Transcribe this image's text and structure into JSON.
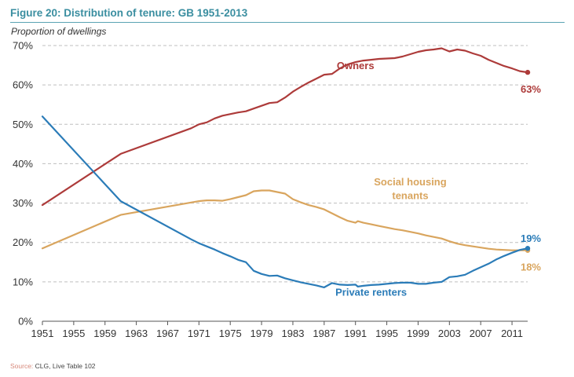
{
  "figure": {
    "title": "Figure 20:  Distribution of tenure: GB 1951-2013",
    "ylabel": "Proportion of dwellings",
    "source_prefix": "Source:",
    "source_text": " CLG, Live Table 102"
  },
  "colors": {
    "owners": "#ad3b3a",
    "social": "#d9a55e",
    "private": "#2b7cb8",
    "grid": "#bfbfbf",
    "axis": "#555555",
    "title": "#3a8ea0"
  },
  "chart_data": {
    "type": "line",
    "title": "Figure 20:  Distribution of tenure: GB 1951-2013",
    "ylabel": "Proportion of dwellings",
    "xlabel": "",
    "xlim": [
      1951,
      2013
    ],
    "ylim": [
      0,
      70
    ],
    "yticks": [
      0,
      10,
      20,
      30,
      40,
      50,
      60,
      70
    ],
    "ytick_labels": [
      "0%",
      "10%",
      "20%",
      "30%",
      "40%",
      "50%",
      "60%",
      "70%"
    ],
    "xticks": [
      1951,
      1955,
      1959,
      1963,
      1967,
      1971,
      1975,
      1979,
      1983,
      1987,
      1991,
      1995,
      1999,
      2003,
      2007,
      2011
    ],
    "xtick_labels": [
      "1951",
      "1955",
      "1959",
      "1963",
      "1967",
      "1971",
      "1975",
      "1979",
      "1983",
      "1987",
      "1991",
      "1995",
      "1999",
      "2003",
      "2007",
      "2011"
    ],
    "grid": "horizontal-dashed",
    "legend": "none",
    "series": [
      {
        "name": "Owners",
        "color": "#ad3b3a",
        "end_label": "63%",
        "points": [
          [
            1951,
            29.5
          ],
          [
            1961,
            42.5
          ],
          [
            1970,
            49
          ],
          [
            1971,
            50
          ],
          [
            1972,
            50.5
          ],
          [
            1973,
            51.5
          ],
          [
            1974,
            52.2
          ],
          [
            1976,
            53
          ],
          [
            1977,
            53.3
          ],
          [
            1978,
            54
          ],
          [
            1979,
            54.7
          ],
          [
            1980,
            55.4
          ],
          [
            1981,
            55.6
          ],
          [
            1982,
            56.8
          ],
          [
            1983,
            58.3
          ],
          [
            1984,
            59.5
          ],
          [
            1985,
            60.6
          ],
          [
            1986,
            61.6
          ],
          [
            1987,
            62.6
          ],
          [
            1988,
            62.8
          ],
          [
            1989,
            64.2
          ],
          [
            1990,
            65.2
          ],
          [
            1991,
            65.8
          ],
          [
            1992,
            66.2
          ],
          [
            1993,
            66.4
          ],
          [
            1994,
            66.6
          ],
          [
            1995,
            66.7
          ],
          [
            1996,
            66.8
          ],
          [
            1997,
            67.2
          ],
          [
            1998,
            67.8
          ],
          [
            1999,
            68.4
          ],
          [
            2000,
            68.8
          ],
          [
            2001,
            69
          ],
          [
            2002,
            69.3
          ],
          [
            2003,
            68.5
          ],
          [
            2004,
            69
          ],
          [
            2005,
            68.7
          ],
          [
            2006,
            68
          ],
          [
            2007,
            67.4
          ],
          [
            2008,
            66.4
          ],
          [
            2009,
            65.6
          ],
          [
            2010,
            64.8
          ],
          [
            2011,
            64.2
          ],
          [
            2012,
            63.5
          ],
          [
            2013,
            63.2
          ]
        ]
      },
      {
        "name": "Social housing tenants",
        "color": "#d9a55e",
        "end_label": "18%",
        "points": [
          [
            1951,
            18.5
          ],
          [
            1961,
            27
          ],
          [
            1971,
            30.5
          ],
          [
            1972,
            30.7
          ],
          [
            1973,
            30.7
          ],
          [
            1974,
            30.6
          ],
          [
            1975,
            31
          ],
          [
            1976,
            31.5
          ],
          [
            1977,
            32
          ],
          [
            1978,
            33
          ],
          [
            1979,
            33.2
          ],
          [
            1980,
            33.2
          ],
          [
            1981,
            32.8
          ],
          [
            1982,
            32.4
          ],
          [
            1983,
            31
          ],
          [
            1984,
            30.2
          ],
          [
            1985,
            29.5
          ],
          [
            1986,
            29
          ],
          [
            1987,
            28.4
          ],
          [
            1988,
            27.4
          ],
          [
            1989,
            26.4
          ],
          [
            1990,
            25.5
          ],
          [
            1991,
            25
          ],
          [
            1991.3,
            25.4
          ],
          [
            1992,
            25
          ],
          [
            1993,
            24.6
          ],
          [
            1994,
            24.2
          ],
          [
            1995,
            23.8
          ],
          [
            1996,
            23.4
          ],
          [
            1997,
            23.1
          ],
          [
            1998,
            22.7
          ],
          [
            1999,
            22.3
          ],
          [
            2000,
            21.8
          ],
          [
            2001,
            21.4
          ],
          [
            2002,
            21
          ],
          [
            2003,
            20.3
          ],
          [
            2004,
            19.7
          ],
          [
            2005,
            19.3
          ],
          [
            2006,
            19
          ],
          [
            2007,
            18.7
          ],
          [
            2008,
            18.4
          ],
          [
            2009,
            18.2
          ],
          [
            2010,
            18.1
          ],
          [
            2011,
            18
          ],
          [
            2012,
            18
          ],
          [
            2013,
            18
          ]
        ]
      },
      {
        "name": "Private renters",
        "color": "#2b7cb8",
        "end_label": "19%",
        "points": [
          [
            1951,
            52
          ],
          [
            1961,
            30.5
          ],
          [
            1970,
            20.8
          ],
          [
            1971,
            19.8
          ],
          [
            1972,
            19
          ],
          [
            1973,
            18.2
          ],
          [
            1974,
            17.3
          ],
          [
            1975,
            16.5
          ],
          [
            1976,
            15.6
          ],
          [
            1977,
            15
          ],
          [
            1978,
            12.8
          ],
          [
            1979,
            12
          ],
          [
            1980,
            11.5
          ],
          [
            1981,
            11.6
          ],
          [
            1982,
            10.9
          ],
          [
            1983,
            10.4
          ],
          [
            1984,
            9.9
          ],
          [
            1985,
            9.5
          ],
          [
            1986,
            9.1
          ],
          [
            1987,
            8.6
          ],
          [
            1988,
            9.7
          ],
          [
            1989,
            9.3
          ],
          [
            1990,
            9.2
          ],
          [
            1991,
            9.3
          ],
          [
            1991.3,
            8.8
          ],
          [
            1992,
            9
          ],
          [
            1993,
            9.2
          ],
          [
            1994,
            9.3
          ],
          [
            1995,
            9.5
          ],
          [
            1996,
            9.7
          ],
          [
            1997,
            9.8
          ],
          [
            1998,
            9.8
          ],
          [
            1999,
            9.5
          ],
          [
            2000,
            9.5
          ],
          [
            2001,
            9.8
          ],
          [
            2002,
            10
          ],
          [
            2003,
            11.2
          ],
          [
            2004,
            11.4
          ],
          [
            2005,
            11.8
          ],
          [
            2006,
            12.8
          ],
          [
            2007,
            13.7
          ],
          [
            2008,
            14.6
          ],
          [
            2009,
            15.7
          ],
          [
            2010,
            16.6
          ],
          [
            2011,
            17.4
          ],
          [
            2012,
            18.1
          ],
          [
            2013,
            18.5
          ]
        ]
      }
    ],
    "annotations": [
      {
        "text": "Owners",
        "series": 0,
        "at": [
          1991,
          64.0
        ]
      },
      {
        "text": "Social housing",
        "series": 1,
        "at": [
          1998,
          34.5
        ]
      },
      {
        "text": "tenants",
        "series": 1,
        "at": [
          1998,
          31.0
        ]
      },
      {
        "text": "Private renters",
        "series": 2,
        "at": [
          1993,
          6.5
        ]
      }
    ]
  }
}
